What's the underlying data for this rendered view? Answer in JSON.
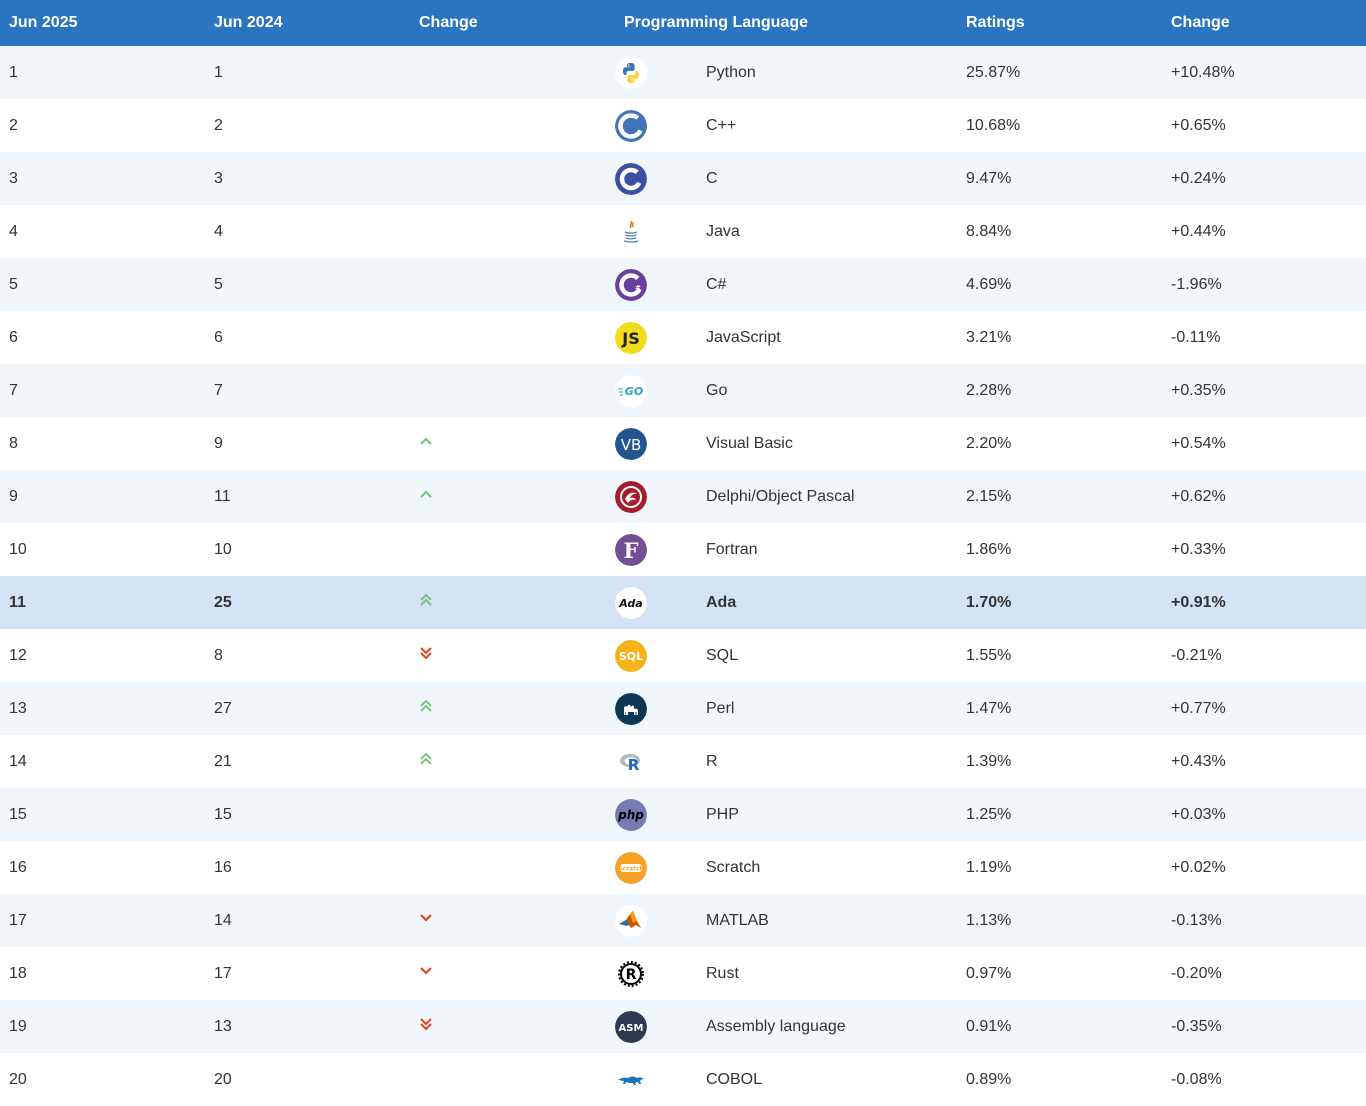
{
  "headers": {
    "rank_now": "Jun 2025",
    "rank_prev": "Jun 2024",
    "change": "Change",
    "language": "Programming Language",
    "ratings": "Ratings",
    "change_pct": "Change"
  },
  "colors": {
    "header_bg": "#2a74c0",
    "arrow_up": "#7cc47f",
    "arrow_down": "#e0451f",
    "highlight_row": "#d4e3f3"
  },
  "rows": [
    {
      "now": "1",
      "prev": "1",
      "trend": "none",
      "icon": "python-logo-icon",
      "lang": "Python",
      "rating": "25.87%",
      "change": "+10.48%"
    },
    {
      "now": "2",
      "prev": "2",
      "trend": "none",
      "icon": "cpp-logo-icon",
      "lang": "C++",
      "rating": "10.68%",
      "change": "+0.65%"
    },
    {
      "now": "3",
      "prev": "3",
      "trend": "none",
      "icon": "c-logo-icon",
      "lang": "C",
      "rating": "9.47%",
      "change": "+0.24%"
    },
    {
      "now": "4",
      "prev": "4",
      "trend": "none",
      "icon": "java-logo-icon",
      "lang": "Java",
      "rating": "8.84%",
      "change": "+0.44%"
    },
    {
      "now": "5",
      "prev": "5",
      "trend": "none",
      "icon": "csharp-logo-icon",
      "lang": "C#",
      "rating": "4.69%",
      "change": "-1.96%"
    },
    {
      "now": "6",
      "prev": "6",
      "trend": "none",
      "icon": "javascript-logo-icon",
      "lang": "JavaScript",
      "rating": "3.21%",
      "change": "-0.11%"
    },
    {
      "now": "7",
      "prev": "7",
      "trend": "none",
      "icon": "go-logo-icon",
      "lang": "Go",
      "rating": "2.28%",
      "change": "+0.35%"
    },
    {
      "now": "8",
      "prev": "9",
      "trend": "up",
      "icon": "visual-basic-logo-icon",
      "lang": "Visual Basic",
      "rating": "2.20%",
      "change": "+0.54%"
    },
    {
      "now": "9",
      "prev": "11",
      "trend": "up",
      "icon": "delphi-logo-icon",
      "lang": "Delphi/Object Pascal",
      "rating": "2.15%",
      "change": "+0.62%"
    },
    {
      "now": "10",
      "prev": "10",
      "trend": "none",
      "icon": "fortran-logo-icon",
      "lang": "Fortran",
      "rating": "1.86%",
      "change": "+0.33%"
    },
    {
      "now": "11",
      "prev": "25",
      "trend": "up2",
      "icon": "ada-logo-icon",
      "lang": "Ada",
      "rating": "1.70%",
      "change": "+0.91%",
      "highlight": true
    },
    {
      "now": "12",
      "prev": "8",
      "trend": "down2",
      "icon": "sql-logo-icon",
      "lang": "SQL",
      "rating": "1.55%",
      "change": "-0.21%"
    },
    {
      "now": "13",
      "prev": "27",
      "trend": "up2",
      "icon": "perl-logo-icon",
      "lang": "Perl",
      "rating": "1.47%",
      "change": "+0.77%"
    },
    {
      "now": "14",
      "prev": "21",
      "trend": "up2",
      "icon": "r-logo-icon",
      "lang": "R",
      "rating": "1.39%",
      "change": "+0.43%"
    },
    {
      "now": "15",
      "prev": "15",
      "trend": "none",
      "icon": "php-logo-icon",
      "lang": "PHP",
      "rating": "1.25%",
      "change": "+0.03%"
    },
    {
      "now": "16",
      "prev": "16",
      "trend": "none",
      "icon": "scratch-logo-icon",
      "lang": "Scratch",
      "rating": "1.19%",
      "change": "+0.02%"
    },
    {
      "now": "17",
      "prev": "14",
      "trend": "down",
      "icon": "matlab-logo-icon",
      "lang": "MATLAB",
      "rating": "1.13%",
      "change": "-0.13%"
    },
    {
      "now": "18",
      "prev": "17",
      "trend": "down",
      "icon": "rust-logo-icon",
      "lang": "Rust",
      "rating": "0.97%",
      "change": "-0.20%"
    },
    {
      "now": "19",
      "prev": "13",
      "trend": "down2",
      "icon": "assembly-logo-icon",
      "lang": "Assembly language",
      "rating": "0.91%",
      "change": "-0.35%"
    },
    {
      "now": "20",
      "prev": "20",
      "trend": "none",
      "icon": "cobol-logo-icon",
      "lang": "COBOL",
      "rating": "0.89%",
      "change": "-0.08%"
    }
  ]
}
